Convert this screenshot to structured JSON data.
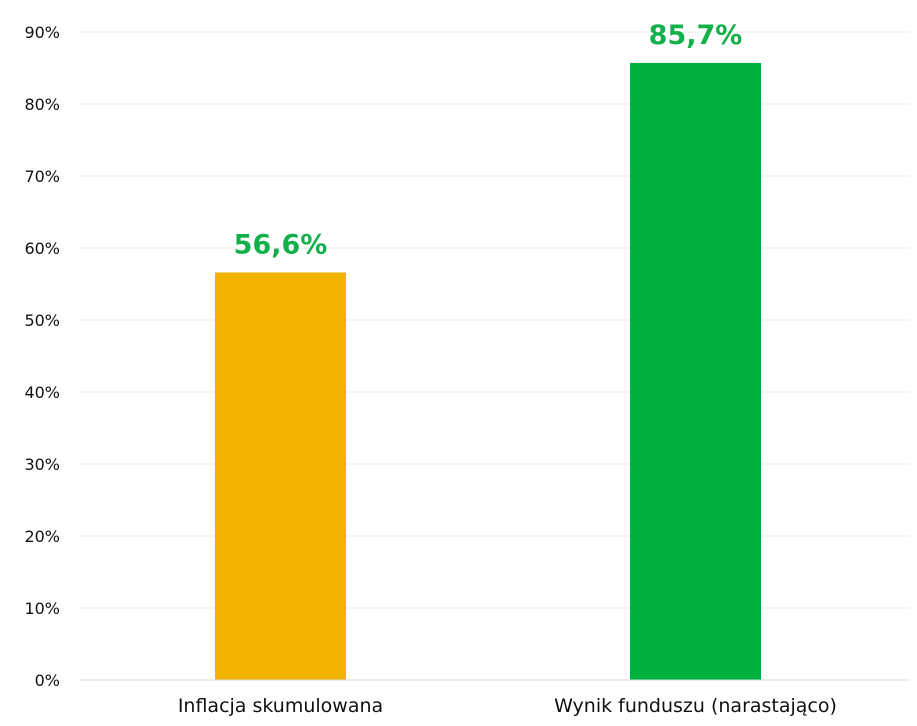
{
  "chart_data": {
    "type": "bar",
    "categories": [
      "Inflacja skumulowana",
      "Wynik funduszu (narastająco)"
    ],
    "values": [
      56.6,
      85.7
    ],
    "data_labels": [
      "56,6%",
      "85,7%"
    ],
    "bar_colors": [
      "#f2b400",
      "#00b140"
    ],
    "label_color": "#12b04a",
    "ylim": [
      0,
      90
    ],
    "y_ticks": [
      0,
      10,
      20,
      30,
      40,
      50,
      60,
      70,
      80,
      90
    ],
    "y_tick_labels": [
      "0%",
      "10%",
      "20%",
      "30%",
      "40%",
      "50%",
      "60%",
      "70%",
      "80%",
      "90%"
    ],
    "grid": true,
    "legend": "none",
    "title": "",
    "xlabel": "",
    "ylabel": ""
  }
}
